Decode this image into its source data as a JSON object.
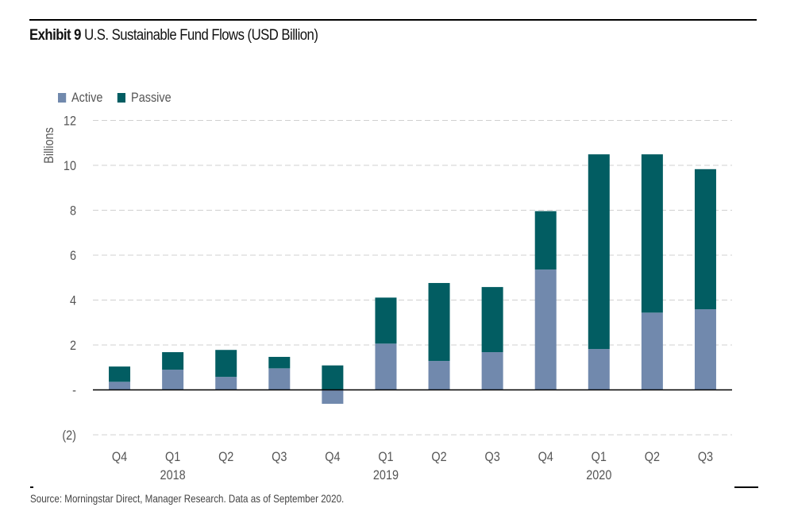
{
  "header": {
    "exhibit_label": "Exhibit 9",
    "title": "U.S. Sustainable Fund Flows (USD Billion)"
  },
  "footer": {
    "source": "Source: Morningstar Direct, Manager Research. Data as of September 2020."
  },
  "colors": {
    "active": "#7189ad",
    "passive": "#025d62",
    "grid": "#d0d0d0",
    "axis": "#000000",
    "text": "#555555"
  },
  "chart_data": {
    "type": "bar",
    "stacked": true,
    "title": "Exhibit 9 U.S. Sustainable Fund Flows (USD Billion)",
    "xlabel": "",
    "ylabel": "Billions",
    "ylim": [
      -2,
      12
    ],
    "yticks": [
      -2,
      0,
      2,
      4,
      6,
      8,
      10,
      12
    ],
    "ytick_labels": [
      "(2)",
      "-",
      "2",
      "4",
      "6",
      "8",
      "10",
      "12"
    ],
    "grid": true,
    "legend_position": "top-left",
    "categories": [
      "Q4",
      "Q1",
      "Q2",
      "Q3",
      "Q4",
      "Q1",
      "Q2",
      "Q3",
      "Q4",
      "Q1",
      "Q2",
      "Q3"
    ],
    "year_labels": [
      {
        "index": 1,
        "label": "2018"
      },
      {
        "index": 5,
        "label": "2019"
      },
      {
        "index": 9,
        "label": "2020"
      }
    ],
    "series": [
      {
        "name": "Active",
        "values": [
          0.36,
          0.9,
          0.58,
          0.96,
          -0.62,
          2.06,
          1.29,
          1.68,
          5.36,
          1.82,
          3.44,
          3.59
        ]
      },
      {
        "name": "Passive",
        "values": [
          0.68,
          0.78,
          1.2,
          0.51,
          1.09,
          2.05,
          3.47,
          2.9,
          2.6,
          8.67,
          7.05,
          6.24
        ]
      }
    ]
  }
}
